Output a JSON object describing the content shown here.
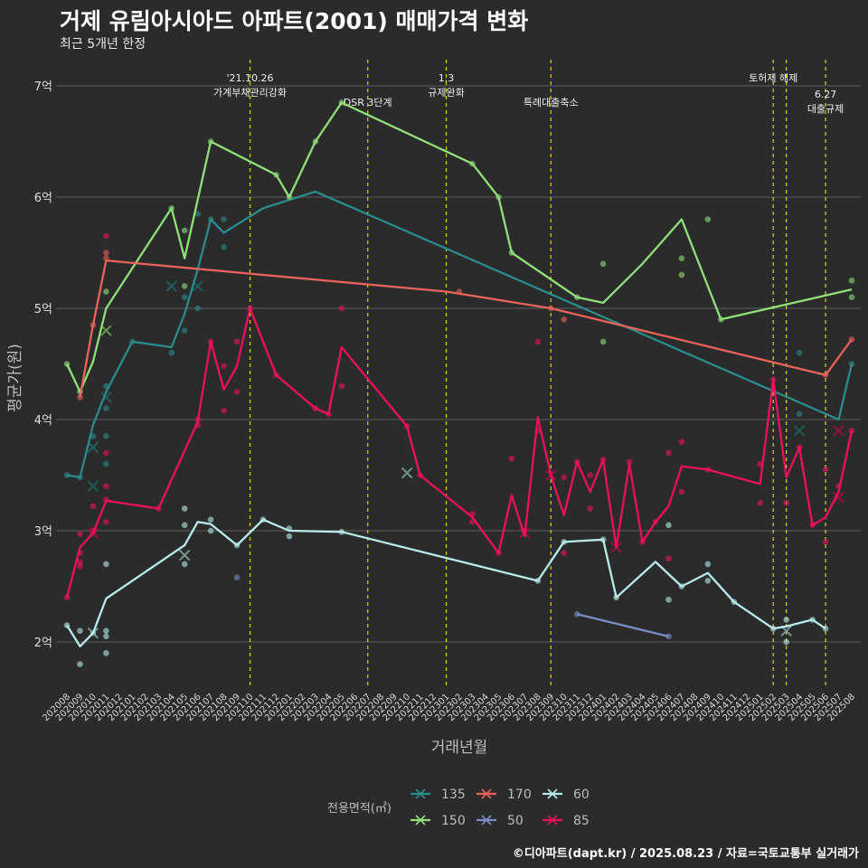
{
  "title": "거제 유림아시아드 아파트(2001) 매매가격 변화",
  "subtitle": "최근 5개년 한정",
  "caption": "©디아파트(dapt.kr) / 2025.08.23 / 자료=국토교통부 실거래가",
  "chart_data": {
    "type": "line",
    "xlabel": "거래년월",
    "ylabel": "평균가(원)",
    "yticks": [
      {
        "v": 2,
        "label": "2억"
      },
      {
        "v": 3,
        "label": "3억"
      },
      {
        "v": 4,
        "label": "4억"
      },
      {
        "v": 5,
        "label": "5억"
      },
      {
        "v": 6,
        "label": "6억"
      },
      {
        "v": 7,
        "label": "7억"
      }
    ],
    "ylim": [
      1.55,
      7.3
    ],
    "categories": [
      "202008",
      "202009",
      "202010",
      "202011",
      "202012",
      "202101",
      "202102",
      "202103",
      "202104",
      "202105",
      "202106",
      "202107",
      "202108",
      "202109",
      "202110",
      "202111",
      "202112",
      "202201",
      "202202",
      "202203",
      "202204",
      "202205",
      "202206",
      "202207",
      "202208",
      "202209",
      "202210",
      "202211",
      "202212",
      "202301",
      "202302",
      "202303",
      "202304",
      "202305",
      "202306",
      "202307",
      "202308",
      "202309",
      "202310",
      "202311",
      "202312",
      "202401",
      "202402",
      "202403",
      "202404",
      "202405",
      "202406",
      "202407",
      "202408",
      "202409",
      "202410",
      "202411",
      "202412",
      "202501",
      "202502",
      "202503",
      "202504",
      "202505",
      "202506",
      "202507",
      "202508"
    ],
    "events": [
      {
        "x": 14,
        "lines": [
          "'21.10.26",
          "가계부채관리강화"
        ],
        "row": 0
      },
      {
        "x": 23,
        "lines": [
          "DSR 3단계"
        ],
        "row": 1
      },
      {
        "x": 29,
        "lines": [
          "1.3",
          "규제완화"
        ],
        "row": 0
      },
      {
        "x": 37,
        "lines": [
          "특례대출축소"
        ],
        "row": 1
      },
      {
        "x": 54,
        "lines": [
          "토허제 해제"
        ],
        "row": 0
      },
      {
        "x": 55,
        "lines": [],
        "row": 0
      },
      {
        "x": 58,
        "lines": [
          "6.27",
          "대출규제"
        ],
        "row": 2
      }
    ],
    "legend_title": "전용면적(㎡)",
    "series": [
      {
        "name": "135",
        "color": "#2a8c8c",
        "line": [
          [
            0,
            3.5
          ],
          [
            1,
            3.48
          ],
          [
            2,
            3.95
          ],
          [
            3,
            4.25
          ],
          [
            5,
            4.7
          ],
          [
            8,
            4.65
          ],
          [
            9,
            4.95
          ],
          [
            10,
            5.35
          ],
          [
            11,
            5.8
          ],
          [
            12,
            5.68
          ],
          [
            15,
            5.9
          ],
          [
            19,
            6.05
          ],
          [
            59,
            4.0
          ],
          [
            60,
            4.5
          ]
        ],
        "points": [
          [
            0,
            3.5
          ],
          [
            1,
            3.48
          ],
          [
            2,
            3.85
          ],
          [
            3,
            4.3
          ],
          [
            3,
            4.1
          ],
          [
            3,
            3.85
          ],
          [
            3,
            3.6
          ],
          [
            5,
            4.7
          ],
          [
            8,
            4.6
          ],
          [
            9,
            4.8
          ],
          [
            9,
            5.1
          ],
          [
            10,
            5.0
          ],
          [
            10,
            5.85
          ],
          [
            11,
            5.8
          ],
          [
            12,
            5.8
          ],
          [
            12,
            5.55
          ],
          [
            56,
            4.05
          ],
          [
            56,
            4.6
          ],
          [
            60,
            4.5
          ]
        ],
        "crosses": [
          [
            2,
            3.75
          ],
          [
            2,
            3.4
          ],
          [
            3,
            4.2
          ],
          [
            8,
            5.2
          ],
          [
            10,
            5.2
          ],
          [
            56,
            3.9
          ]
        ]
      },
      {
        "name": "150",
        "color": "#90e07a",
        "line": [
          [
            0,
            4.5
          ],
          [
            1,
            4.25
          ],
          [
            2,
            4.52
          ],
          [
            3,
            5.0
          ],
          [
            8,
            5.9
          ],
          [
            9,
            5.45
          ],
          [
            11,
            6.5
          ],
          [
            16,
            6.2
          ],
          [
            17,
            6.0
          ],
          [
            19,
            6.5
          ],
          [
            21,
            6.85
          ],
          [
            31,
            6.3
          ],
          [
            33,
            6.0
          ],
          [
            34,
            5.5
          ],
          [
            39,
            5.1
          ],
          [
            41,
            5.05
          ],
          [
            44,
            5.4
          ],
          [
            47,
            5.8
          ],
          [
            50,
            4.9
          ],
          [
            60,
            5.17
          ]
        ],
        "points": [
          [
            0,
            4.5
          ],
          [
            1,
            4.25
          ],
          [
            3,
            5.15
          ],
          [
            8,
            5.9
          ],
          [
            9,
            5.7
          ],
          [
            9,
            5.2
          ],
          [
            11,
            6.5
          ],
          [
            16,
            6.2
          ],
          [
            17,
            6.0
          ],
          [
            19,
            6.5
          ],
          [
            21,
            6.85
          ],
          [
            31,
            6.3
          ],
          [
            33,
            6.0
          ],
          [
            34,
            5.5
          ],
          [
            39,
            5.1
          ],
          [
            41,
            5.4
          ],
          [
            41,
            4.7
          ],
          [
            47,
            5.45
          ],
          [
            47,
            5.3
          ],
          [
            49,
            5.8
          ],
          [
            50,
            4.9
          ],
          [
            60,
            5.25
          ],
          [
            60,
            5.1
          ]
        ],
        "crosses": [
          [
            3,
            4.8
          ]
        ]
      },
      {
        "name": "170",
        "color": "#e8635a",
        "line": [
          [
            1,
            4.2
          ],
          [
            2,
            4.85
          ],
          [
            3,
            5.43
          ],
          [
            29,
            5.15
          ],
          [
            37,
            5.0
          ],
          [
            58,
            4.4
          ],
          [
            60,
            4.72
          ]
        ],
        "points": [
          [
            1,
            4.2
          ],
          [
            2,
            4.85
          ],
          [
            3,
            5.5
          ],
          [
            3,
            5.45
          ],
          [
            30,
            5.15
          ],
          [
            37,
            5.0
          ],
          [
            38,
            4.9
          ],
          [
            58,
            4.4
          ],
          [
            60,
            4.72
          ]
        ],
        "crosses": []
      },
      {
        "name": "50",
        "color": "#7a8ec8",
        "line": [
          [
            39,
            2.25
          ],
          [
            46,
            2.05
          ]
        ],
        "points": [
          [
            13,
            2.58
          ],
          [
            39,
            2.25
          ],
          [
            46,
            2.05
          ]
        ],
        "crosses": []
      },
      {
        "name": "60",
        "color": "#b8ecec",
        "line": [
          [
            0,
            2.15
          ],
          [
            1,
            1.96
          ],
          [
            2,
            2.08
          ],
          [
            3,
            2.39
          ],
          [
            9,
            2.87
          ],
          [
            10,
            3.08
          ],
          [
            11,
            3.06
          ],
          [
            13,
            2.87
          ],
          [
            15,
            3.1
          ],
          [
            17,
            3.0
          ],
          [
            21,
            2.99
          ],
          [
            36,
            2.55
          ],
          [
            38,
            2.9
          ],
          [
            41,
            2.92
          ],
          [
            42,
            2.4
          ],
          [
            45,
            2.72
          ],
          [
            47,
            2.5
          ],
          [
            49,
            2.62
          ],
          [
            51,
            2.36
          ],
          [
            54,
            2.12
          ],
          [
            55,
            2.14
          ],
          [
            57,
            2.2
          ],
          [
            58,
            2.12
          ]
        ],
        "points": [
          [
            0,
            2.15
          ],
          [
            1,
            2.1
          ],
          [
            1,
            1.8
          ],
          [
            2,
            2.08
          ],
          [
            3,
            2.1
          ],
          [
            3,
            2.05
          ],
          [
            3,
            1.9
          ],
          [
            3,
            2.7
          ],
          [
            9,
            3.2
          ],
          [
            9,
            3.05
          ],
          [
            9,
            2.7
          ],
          [
            11,
            3.1
          ],
          [
            11,
            3.0
          ],
          [
            13,
            2.87
          ],
          [
            15,
            3.1
          ],
          [
            17,
            3.02
          ],
          [
            17,
            2.95
          ],
          [
            21,
            2.99
          ],
          [
            36,
            2.55
          ],
          [
            38,
            2.9
          ],
          [
            41,
            2.92
          ],
          [
            42,
            2.4
          ],
          [
            46,
            2.38
          ],
          [
            46,
            3.05
          ],
          [
            47,
            2.5
          ],
          [
            49,
            2.7
          ],
          [
            49,
            2.55
          ],
          [
            51,
            2.36
          ],
          [
            54,
            2.12
          ],
          [
            55,
            2.0
          ],
          [
            55,
            2.2
          ],
          [
            57,
            2.2
          ],
          [
            58,
            2.12
          ]
        ],
        "crosses": [
          [
            2,
            2.08
          ],
          [
            9,
            2.78
          ],
          [
            26,
            3.52
          ],
          [
            55,
            2.1
          ]
        ]
      },
      {
        "name": "85",
        "color": "#f0105c",
        "line": [
          [
            0,
            2.4
          ],
          [
            1,
            2.85
          ],
          [
            2,
            2.98
          ],
          [
            3,
            3.27
          ],
          [
            7,
            3.2
          ],
          [
            10,
            3.98
          ],
          [
            11,
            4.7
          ],
          [
            12,
            4.27
          ],
          [
            13,
            4.48
          ],
          [
            14,
            5.0
          ],
          [
            16,
            4.4
          ],
          [
            19,
            4.1
          ],
          [
            20,
            4.05
          ],
          [
            21,
            4.65
          ],
          [
            26,
            3.94
          ],
          [
            27,
            3.5
          ],
          [
            31,
            3.12
          ],
          [
            33,
            2.8
          ],
          [
            34,
            3.32
          ],
          [
            35,
            2.95
          ],
          [
            36,
            4.02
          ],
          [
            37,
            3.5
          ],
          [
            38,
            3.14
          ],
          [
            39,
            3.62
          ],
          [
            40,
            3.35
          ],
          [
            41,
            3.64
          ],
          [
            42,
            2.85
          ],
          [
            43,
            3.6
          ],
          [
            44,
            2.9
          ],
          [
            45,
            3.08
          ],
          [
            46,
            3.22
          ],
          [
            47,
            3.58
          ],
          [
            49,
            3.55
          ],
          [
            53,
            3.42
          ],
          [
            54,
            4.36
          ],
          [
            55,
            3.48
          ],
          [
            56,
            3.75
          ],
          [
            57,
            3.05
          ],
          [
            58,
            3.12
          ],
          [
            59,
            3.35
          ],
          [
            60,
            3.9
          ]
        ],
        "points": [
          [
            0,
            2.4
          ],
          [
            1,
            2.97
          ],
          [
            1,
            2.8
          ],
          [
            1,
            2.72
          ],
          [
            1,
            2.68
          ],
          [
            2,
            3.0
          ],
          [
            2,
            3.22
          ],
          [
            2,
            2.98
          ],
          [
            3,
            3.7
          ],
          [
            3,
            3.4
          ],
          [
            3,
            3.28
          ],
          [
            3,
            3.08
          ],
          [
            3,
            5.65
          ],
          [
            7,
            3.2
          ],
          [
            10,
            4.0
          ],
          [
            10,
            3.95
          ],
          [
            11,
            4.7
          ],
          [
            12,
            4.48
          ],
          [
            12,
            4.08
          ],
          [
            13,
            4.7
          ],
          [
            13,
            4.25
          ],
          [
            14,
            5.0
          ],
          [
            16,
            4.4
          ],
          [
            19,
            4.1
          ],
          [
            20,
            4.05
          ],
          [
            21,
            5.0
          ],
          [
            21,
            4.3
          ],
          [
            26,
            3.94
          ],
          [
            27,
            3.5
          ],
          [
            31,
            3.15
          ],
          [
            31,
            3.08
          ],
          [
            33,
            2.8
          ],
          [
            34,
            3.65
          ],
          [
            35,
            3.0
          ],
          [
            36,
            4.7
          ],
          [
            36,
            3.9
          ],
          [
            38,
            3.48
          ],
          [
            38,
            2.8
          ],
          [
            39,
            3.62
          ],
          [
            40,
            3.5
          ],
          [
            40,
            3.2
          ],
          [
            41,
            3.64
          ],
          [
            43,
            3.62
          ],
          [
            44,
            2.9
          ],
          [
            45,
            3.08
          ],
          [
            46,
            3.7
          ],
          [
            46,
            2.75
          ],
          [
            47,
            3.8
          ],
          [
            47,
            3.35
          ],
          [
            49,
            3.55
          ],
          [
            53,
            3.6
          ],
          [
            53,
            3.25
          ],
          [
            54,
            4.36
          ],
          [
            55,
            3.25
          ],
          [
            56,
            3.75
          ],
          [
            57,
            3.05
          ],
          [
            58,
            3.55
          ],
          [
            58,
            2.9
          ],
          [
            59,
            3.4
          ],
          [
            60,
            3.9
          ]
        ],
        "crosses": [
          [
            2,
            2.98
          ],
          [
            35,
            2.98
          ],
          [
            37,
            3.5
          ],
          [
            42,
            2.85
          ],
          [
            59,
            3.9
          ],
          [
            59,
            3.3
          ]
        ]
      }
    ]
  }
}
